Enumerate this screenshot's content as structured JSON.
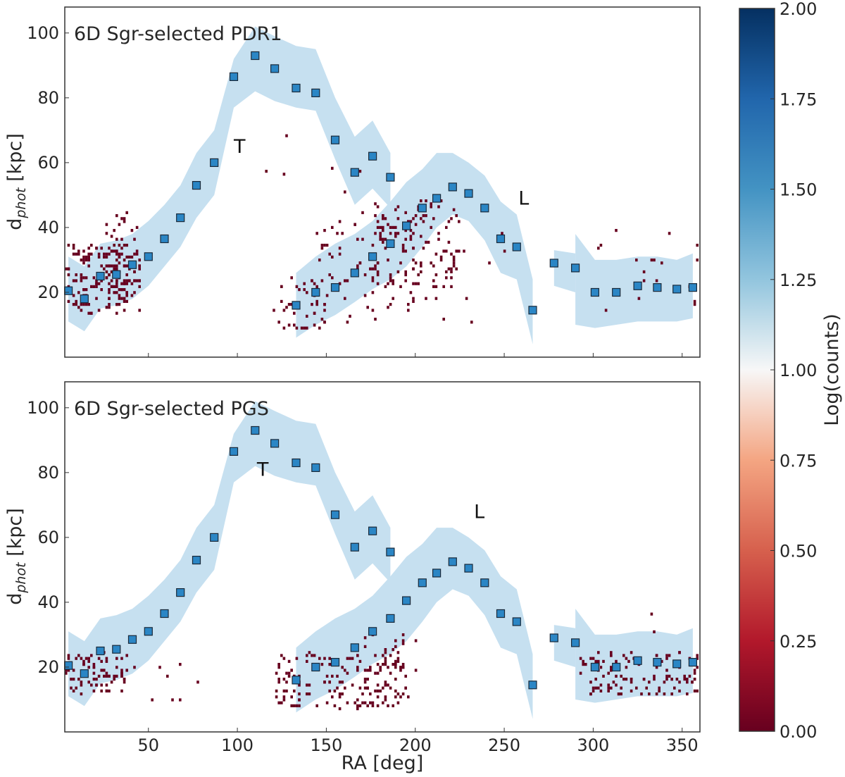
{
  "chart_data": {
    "type": "scatter",
    "xlabel": "RA [deg]",
    "ylabel_main": "d",
    "ylabel_sub": "phot",
    "ylabel_tail": " [kpc]",
    "xlim": [
      3,
      360
    ],
    "ylim": [
      0,
      108
    ],
    "xticks": [
      50,
      100,
      150,
      200,
      250,
      300,
      350
    ],
    "yticks": [
      20,
      40,
      60,
      80,
      100
    ],
    "colors": {
      "model_fill": "#c6e0f0",
      "marker_fill": "#2b86c5",
      "marker_edge": "#1a2a3a",
      "density": "#67001f"
    },
    "model_segments": [
      {
        "x": [
          5,
          14,
          23,
          32,
          41,
          50,
          59,
          68,
          77,
          87,
          98,
          110,
          121,
          133,
          144,
          155,
          166,
          176,
          186
        ],
        "upper": [
          31,
          28,
          35,
          36,
          38,
          42,
          47,
          53,
          63,
          70,
          92,
          102,
          99,
          96,
          95,
          80,
          68,
          73,
          63
        ],
        "lower": [
          11,
          8,
          15,
          16,
          18,
          22,
          28,
          34,
          43,
          50,
          77,
          82,
          79,
          77,
          76,
          61,
          47,
          52,
          46
        ]
      },
      {
        "x": [
          133,
          144,
          155,
          166,
          176,
          186,
          195,
          204,
          212,
          221,
          230,
          239,
          248,
          257,
          266
        ],
        "upper": [
          26,
          31,
          35,
          38,
          42,
          48,
          54,
          58,
          63,
          63,
          60,
          56,
          48,
          44,
          24
        ],
        "lower": [
          6,
          10,
          13,
          17,
          21,
          24,
          28,
          34,
          40,
          44,
          42,
          36,
          26,
          24,
          4
        ]
      },
      {
        "x": [
          278,
          290
        ],
        "upper": [
          33,
          32
        ],
        "lower": [
          22,
          20
        ]
      },
      {
        "x": [
          290,
          301,
          313,
          325,
          336,
          347,
          356
        ],
        "upper": [
          38,
          30,
          30,
          31,
          31,
          30,
          32
        ],
        "lower": [
          10,
          9,
          10,
          11,
          11,
          11,
          12
        ]
      }
    ],
    "markers": {
      "x": [
        5,
        14,
        23,
        32,
        41,
        50,
        59,
        68,
        77,
        87,
        98,
        110,
        121,
        133,
        144,
        155,
        166,
        176,
        186,
        133,
        144,
        155,
        166,
        176,
        186,
        195,
        204,
        212,
        221,
        230,
        239,
        248,
        257,
        266,
        278,
        290,
        301,
        313,
        325,
        336,
        347,
        356
      ],
      "y": [
        20.5,
        18,
        25,
        25.5,
        28.5,
        31,
        36.5,
        43,
        53,
        60,
        86.5,
        93,
        89,
        83,
        81.5,
        67,
        57,
        62,
        55.5,
        16,
        20,
        21.5,
        26,
        31,
        35,
        40.5,
        46,
        49,
        52.5,
        50.5,
        46,
        36.5,
        34,
        14.5,
        29,
        27.5,
        20,
        20,
        22,
        21.5,
        21,
        21.5
      ]
    },
    "colorbar": {
      "label": "Log(counts)",
      "min": 0.0,
      "max": 2.0,
      "ticks": [
        "0.00",
        "0.25",
        "0.50",
        "0.75",
        "1.00",
        "1.25",
        "1.50",
        "1.75",
        "2.00"
      ]
    },
    "panels": [
      {
        "title": "6D Sgr-selected PDR1",
        "annotations": [
          {
            "text": "T",
            "x": 98,
            "y": 63
          },
          {
            "text": "L",
            "x": 258,
            "y": 47
          }
        ],
        "density_clusters": [
          {
            "xmin": 3,
            "xmax": 45,
            "ymin": 14,
            "ymax": 35,
            "n": 170
          },
          {
            "xmin": 25,
            "xmax": 45,
            "ymin": 22,
            "ymax": 45,
            "n": 40
          },
          {
            "xmin": 120,
            "xmax": 150,
            "ymin": 9,
            "ymax": 25,
            "n": 45
          },
          {
            "xmin": 140,
            "xmax": 200,
            "ymin": 15,
            "ymax": 45,
            "n": 70
          },
          {
            "xmin": 175,
            "xmax": 225,
            "ymin": 22,
            "ymax": 50,
            "n": 110
          },
          {
            "xmin": 160,
            "xmax": 250,
            "ymin": 10,
            "ymax": 40,
            "n": 22
          },
          {
            "xmin": 300,
            "xmax": 360,
            "ymin": 14,
            "ymax": 40,
            "n": 18
          },
          {
            "xmin": 110,
            "xmax": 190,
            "ymin": 35,
            "ymax": 70,
            "n": 6
          }
        ]
      },
      {
        "title": "6D Sgr-selected PGS",
        "annotations": [
          {
            "text": "T",
            "x": 111,
            "y": 79
          },
          {
            "text": "L",
            "x": 233,
            "y": 66
          }
        ],
        "density_clusters": [
          {
            "xmin": 3,
            "xmax": 38,
            "ymin": 12,
            "ymax": 25,
            "n": 75
          },
          {
            "xmin": 120,
            "xmax": 195,
            "ymin": 8,
            "ymax": 25,
            "n": 160
          },
          {
            "xmin": 160,
            "xmax": 200,
            "ymin": 14,
            "ymax": 32,
            "n": 25
          },
          {
            "xmin": 290,
            "xmax": 360,
            "ymin": 12,
            "ymax": 25,
            "n": 120
          },
          {
            "xmin": 35,
            "xmax": 80,
            "ymin": 10,
            "ymax": 22,
            "n": 8
          },
          {
            "xmin": 330,
            "xmax": 340,
            "ymin": 30,
            "ymax": 40,
            "n": 2
          }
        ]
      }
    ]
  }
}
